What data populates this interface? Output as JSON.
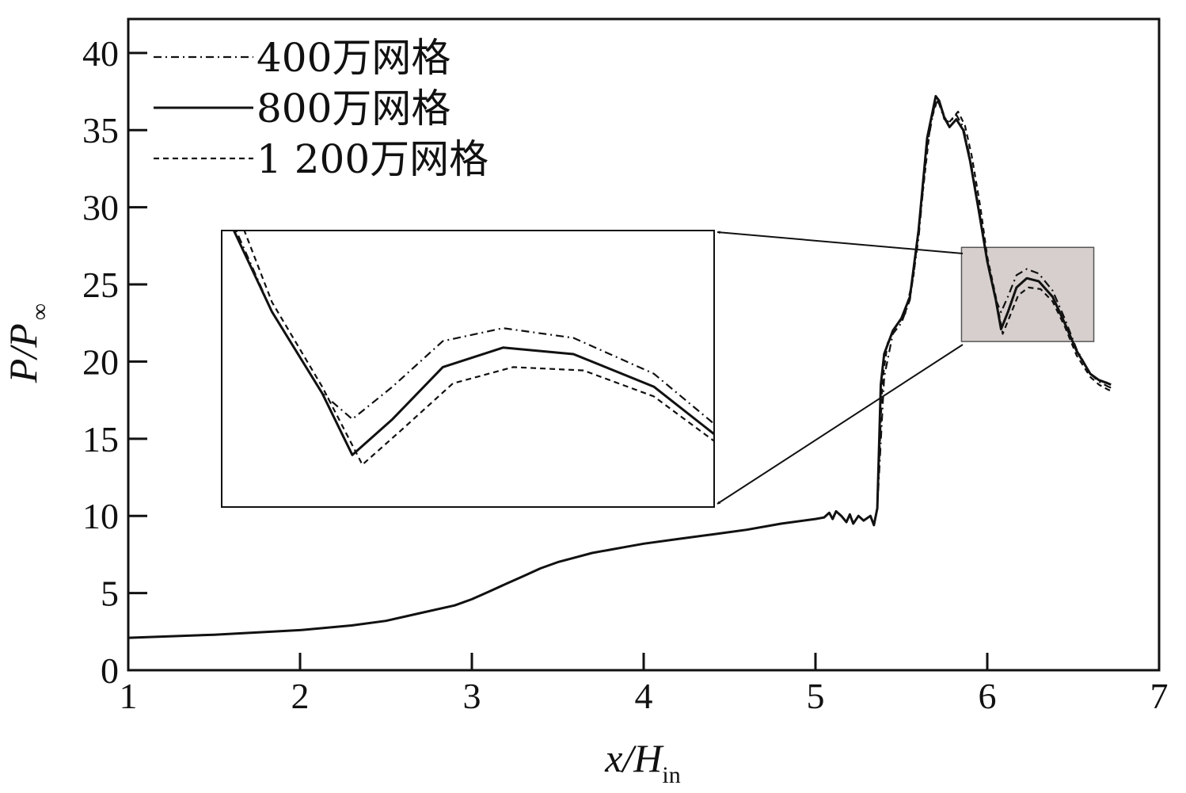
{
  "chart_data": {
    "type": "line",
    "xlabel": {
      "main": "x/H",
      "sub": "in"
    },
    "ylabel": {
      "main": "P/P",
      "sub": "∞"
    },
    "xlim": [
      1,
      7
    ],
    "ylim": [
      0,
      42.2
    ],
    "xticks": [
      1,
      2,
      3,
      4,
      5,
      6,
      7
    ],
    "yticks": [
      0,
      5,
      10,
      15,
      20,
      25,
      30,
      35,
      40
    ],
    "legend_position": "top-left",
    "grid": false,
    "series": [
      {
        "name": "400万网格",
        "style": "dashdot",
        "points": [
          [
            5.36,
            10.5
          ],
          [
            5.4,
            19.0
          ],
          [
            5.45,
            21.8
          ],
          [
            5.5,
            22.5
          ],
          [
            5.55,
            24.0
          ],
          [
            5.6,
            28.0
          ],
          [
            5.65,
            34.0
          ],
          [
            5.7,
            37.0
          ],
          [
            5.72,
            36.7
          ],
          [
            5.75,
            35.7
          ],
          [
            5.78,
            35.5
          ],
          [
            5.82,
            36.0
          ],
          [
            5.86,
            35.2
          ],
          [
            5.9,
            33.2
          ],
          [
            5.95,
            30.0
          ],
          [
            6.0,
            26.5
          ],
          [
            6.05,
            24.0
          ],
          [
            6.08,
            23.2
          ],
          [
            6.12,
            24.2
          ],
          [
            6.17,
            25.6
          ],
          [
            6.23,
            26.0
          ],
          [
            6.3,
            25.7
          ],
          [
            6.38,
            24.6
          ],
          [
            6.45,
            22.8
          ],
          [
            6.52,
            20.8
          ],
          [
            6.6,
            19.2
          ],
          [
            6.65,
            18.7
          ],
          [
            6.7,
            18.4
          ],
          [
            6.72,
            18.3
          ]
        ]
      },
      {
        "name": "800万网格",
        "style": "solid",
        "points": [
          [
            1.0,
            2.1
          ],
          [
            1.5,
            2.3
          ],
          [
            2.0,
            2.6
          ],
          [
            2.3,
            2.9
          ],
          [
            2.5,
            3.2
          ],
          [
            2.7,
            3.7
          ],
          [
            2.9,
            4.2
          ],
          [
            3.0,
            4.6
          ],
          [
            3.1,
            5.1
          ],
          [
            3.2,
            5.6
          ],
          [
            3.3,
            6.1
          ],
          [
            3.4,
            6.6
          ],
          [
            3.5,
            7.0
          ],
          [
            3.6,
            7.3
          ],
          [
            3.7,
            7.6
          ],
          [
            3.8,
            7.8
          ],
          [
            3.9,
            8.0
          ],
          [
            4.0,
            8.2
          ],
          [
            4.2,
            8.5
          ],
          [
            4.4,
            8.8
          ],
          [
            4.6,
            9.1
          ],
          [
            4.8,
            9.5
          ],
          [
            5.0,
            9.8
          ],
          [
            5.05,
            9.9
          ],
          [
            5.08,
            10.2
          ],
          [
            5.1,
            9.8
          ],
          [
            5.12,
            10.3
          ],
          [
            5.15,
            10.0
          ],
          [
            5.18,
            9.6
          ],
          [
            5.2,
            10.1
          ],
          [
            5.22,
            9.5
          ],
          [
            5.25,
            10.0
          ],
          [
            5.28,
            9.7
          ],
          [
            5.32,
            10.0
          ],
          [
            5.34,
            9.4
          ],
          [
            5.36,
            10.5
          ],
          [
            5.38,
            18.5
          ],
          [
            5.4,
            20.5
          ],
          [
            5.45,
            22.0
          ],
          [
            5.5,
            22.8
          ],
          [
            5.55,
            24.2
          ],
          [
            5.6,
            28.5
          ],
          [
            5.65,
            34.5
          ],
          [
            5.7,
            37.2
          ],
          [
            5.72,
            36.9
          ],
          [
            5.75,
            35.8
          ],
          [
            5.78,
            35.2
          ],
          [
            5.82,
            35.7
          ],
          [
            5.86,
            35.0
          ],
          [
            5.9,
            33.0
          ],
          [
            5.95,
            29.8
          ],
          [
            6.0,
            26.5
          ],
          [
            6.05,
            24.0
          ],
          [
            6.08,
            22.1
          ],
          [
            6.12,
            23.2
          ],
          [
            6.17,
            24.8
          ],
          [
            6.23,
            25.4
          ],
          [
            6.3,
            25.2
          ],
          [
            6.38,
            24.2
          ],
          [
            6.45,
            22.5
          ],
          [
            6.52,
            20.7
          ],
          [
            6.6,
            19.2
          ],
          [
            6.65,
            18.8
          ],
          [
            6.7,
            18.6
          ],
          [
            6.72,
            18.5
          ]
        ]
      },
      {
        "name": "1 200万网格",
        "style": "dashed",
        "points": [
          [
            5.36,
            10.5
          ],
          [
            5.39,
            18.8
          ],
          [
            5.42,
            21.2
          ],
          [
            5.47,
            22.3
          ],
          [
            5.52,
            23.0
          ],
          [
            5.57,
            25.5
          ],
          [
            5.62,
            30.5
          ],
          [
            5.67,
            35.5
          ],
          [
            5.71,
            37.0
          ],
          [
            5.74,
            36.2
          ],
          [
            5.77,
            35.4
          ],
          [
            5.8,
            35.8
          ],
          [
            5.83,
            36.2
          ],
          [
            5.87,
            35.3
          ],
          [
            5.91,
            33.3
          ],
          [
            5.96,
            30.0
          ],
          [
            6.0,
            26.8
          ],
          [
            6.05,
            24.2
          ],
          [
            6.09,
            21.8
          ],
          [
            6.13,
            22.9
          ],
          [
            6.18,
            24.3
          ],
          [
            6.24,
            24.8
          ],
          [
            6.31,
            24.7
          ],
          [
            6.38,
            23.9
          ],
          [
            6.45,
            22.3
          ],
          [
            6.52,
            20.4
          ],
          [
            6.6,
            19.0
          ],
          [
            6.65,
            18.5
          ],
          [
            6.7,
            18.2
          ],
          [
            6.72,
            18.1
          ]
        ]
      }
    ],
    "inset": {
      "source_xlim": [
        5.95,
        6.44
      ],
      "source_ylim": [
        20.5,
        29.0
      ],
      "shaded_region": {
        "x": [
          5.85,
          6.62
        ],
        "y": [
          21.3,
          27.4
        ]
      }
    }
  }
}
